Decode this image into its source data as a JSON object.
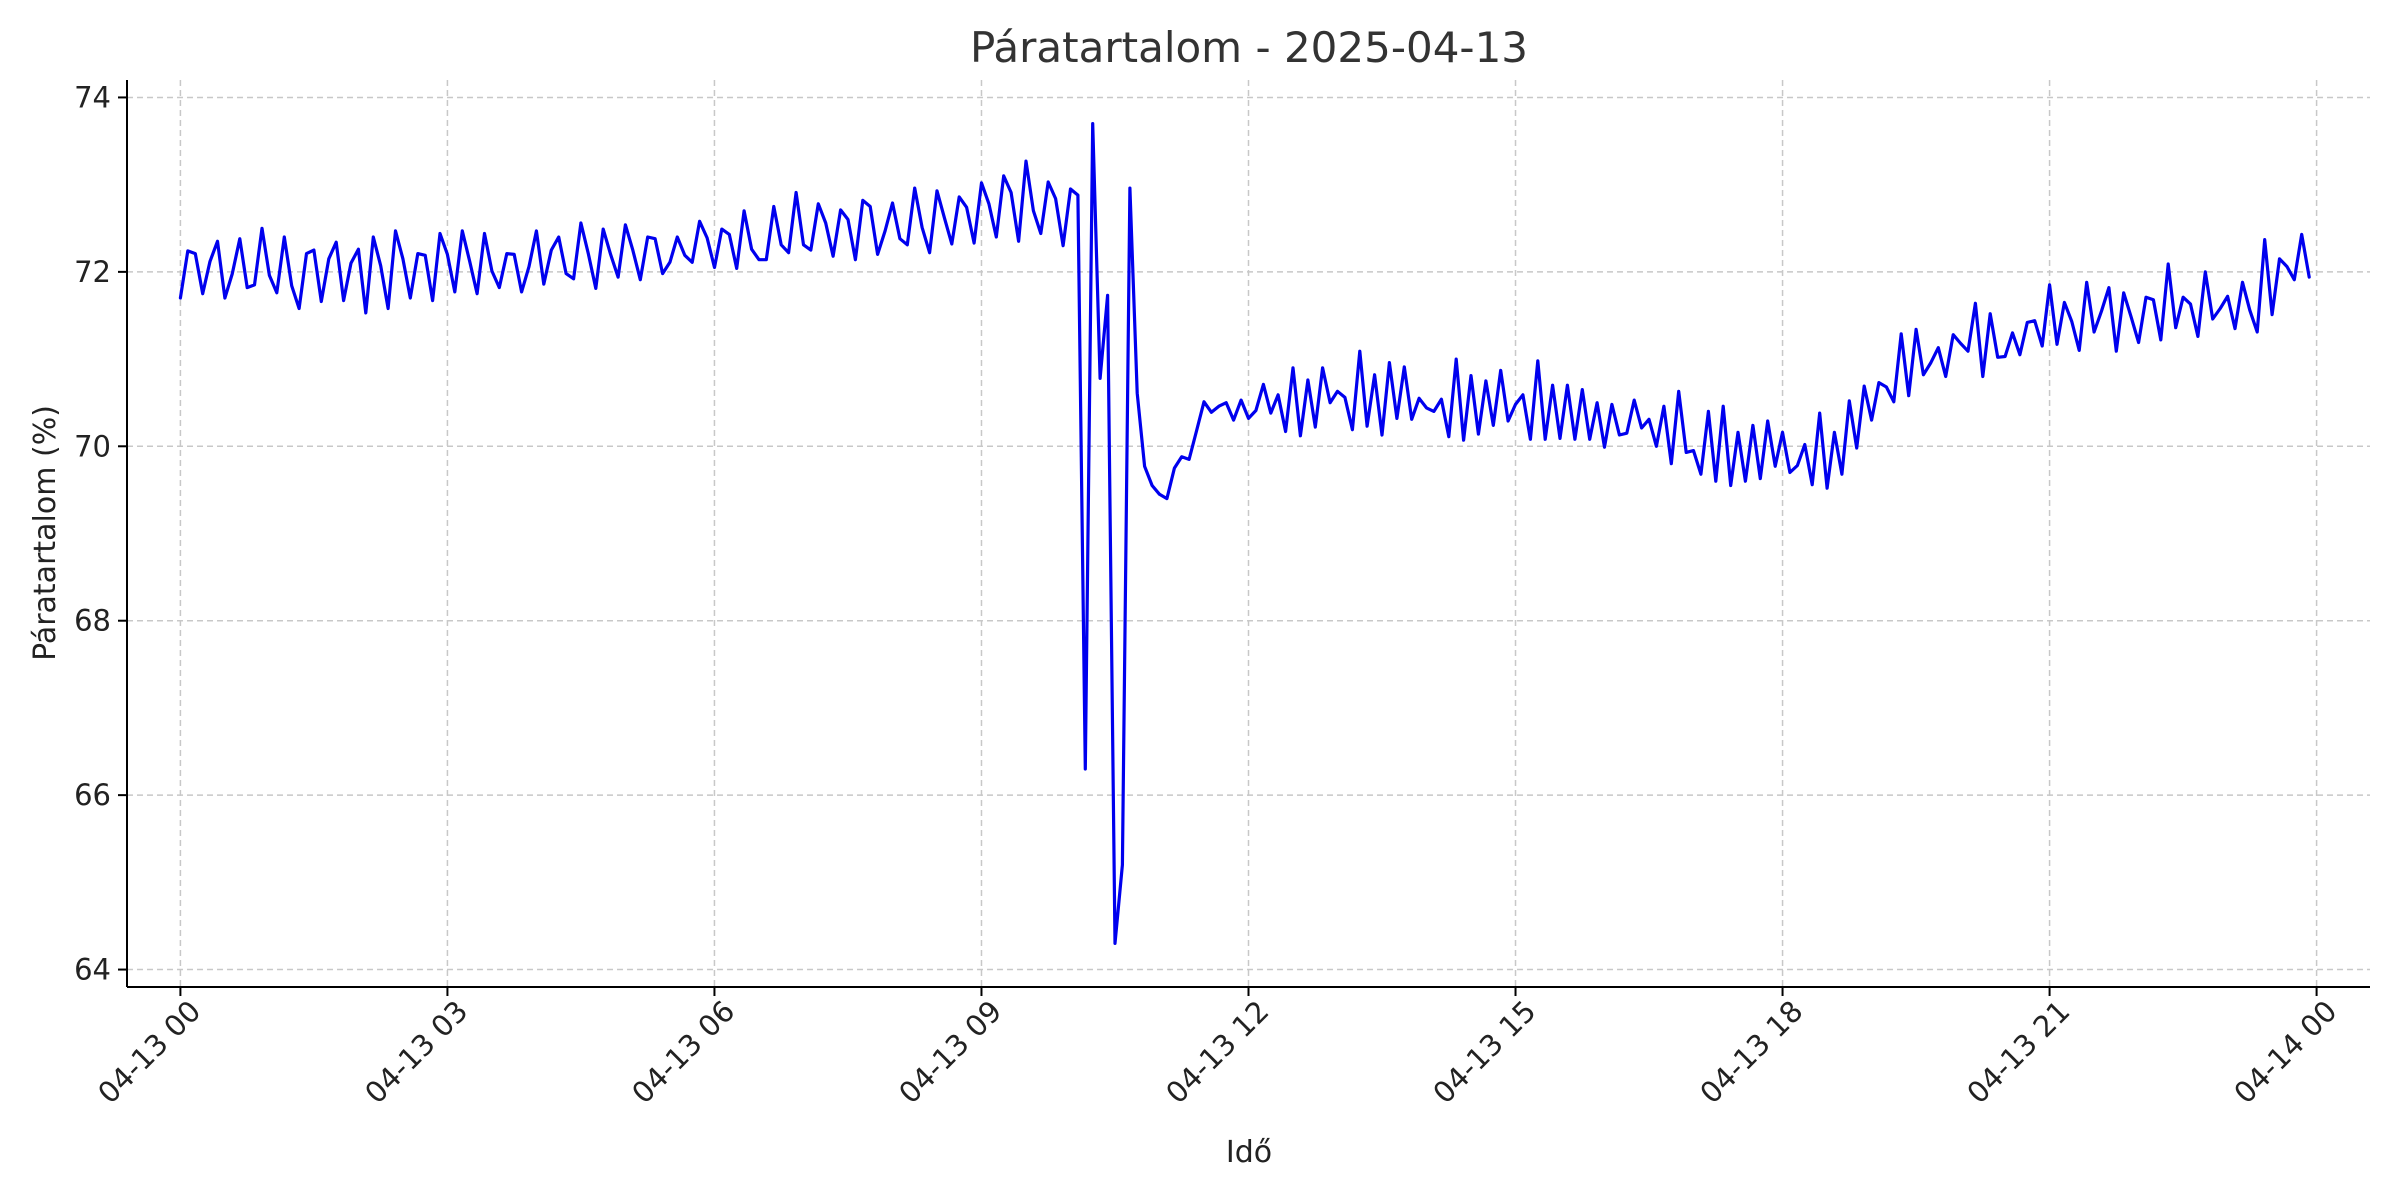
{
  "chart_data": {
    "type": "line",
    "title": "Páratartalom - 2025-04-13",
    "xlabel": "Idő",
    "ylabel": "Páratartalom (%)",
    "xlim_hours": [
      -0.6,
      24.6
    ],
    "ylim": [
      63.8,
      74.2
    ],
    "grid": true,
    "grid_style": "dashed",
    "line_color": "#0000ee",
    "grid_color": "#c8c8c8",
    "x_ticks": [
      {
        "hour": 0,
        "label": "04-13 00"
      },
      {
        "hour": 3,
        "label": "04-13 03"
      },
      {
        "hour": 6,
        "label": "04-13 06"
      },
      {
        "hour": 9,
        "label": "04-13 09"
      },
      {
        "hour": 12,
        "label": "04-13 12"
      },
      {
        "hour": 15,
        "label": "04-13 15"
      },
      {
        "hour": 18,
        "label": "04-13 18"
      },
      {
        "hour": 21,
        "label": "04-13 21"
      },
      {
        "hour": 24,
        "label": "04-14 00"
      }
    ],
    "y_ticks": [
      64,
      66,
      68,
      70,
      72,
      74
    ],
    "series": [
      {
        "x_hours": [
          0.0,
          0.083,
          0.167,
          0.25,
          0.333,
          0.417,
          0.5,
          0.583,
          0.667,
          0.75,
          0.833,
          0.917,
          1.0,
          1.083,
          1.167,
          1.25,
          1.333,
          1.417,
          1.5,
          1.583,
          1.667,
          1.75,
          1.833,
          1.917,
          2.0,
          2.083,
          2.167,
          2.25,
          2.333,
          2.417,
          2.5,
          2.583,
          2.667,
          2.75,
          2.833,
          2.917,
          3.0,
          3.083,
          3.167,
          3.25,
          3.333,
          3.417,
          3.5,
          3.583,
          3.667,
          3.75,
          3.833,
          3.917,
          4.0,
          4.083,
          4.167,
          4.25,
          4.333,
          4.417,
          4.5,
          4.583,
          4.667,
          4.75,
          4.833,
          4.917,
          5.0,
          5.083,
          5.167,
          5.25,
          5.333,
          5.417,
          5.5,
          5.583,
          5.667,
          5.75,
          5.833,
          5.917,
          6.0,
          6.083,
          6.167,
          6.25,
          6.333,
          6.417,
          6.5,
          6.583,
          6.667,
          6.75,
          6.833,
          6.917,
          7.0,
          7.083,
          7.167,
          7.25,
          7.333,
          7.417,
          7.5,
          7.583,
          7.667,
          7.75,
          7.833,
          7.917,
          8.0,
          8.083,
          8.167,
          8.25,
          8.333,
          8.417,
          8.5,
          8.583,
          8.667,
          8.75,
          8.833,
          8.917,
          9.0,
          9.083,
          9.167,
          9.25,
          9.333,
          9.417,
          9.5,
          9.583,
          9.667,
          9.75,
          9.833,
          9.917,
          10.0,
          10.083,
          10.167,
          10.25,
          10.333,
          10.417,
          10.5,
          10.583,
          10.667,
          10.75,
          10.833,
          10.917,
          11.0,
          11.083,
          11.167,
          11.25,
          11.333,
          11.417,
          11.5,
          11.583,
          11.667,
          11.75,
          11.833,
          11.917,
          12.0,
          12.083,
          12.167,
          12.25,
          12.333,
          12.417,
          12.5,
          12.583,
          12.667,
          12.75,
          12.833,
          12.917,
          13.0,
          13.083,
          13.167,
          13.25,
          13.333,
          13.417,
          13.5,
          13.583,
          13.667,
          13.75,
          13.833,
          13.917,
          14.0,
          14.083,
          14.167,
          14.25,
          14.333,
          14.417,
          14.5,
          14.583,
          14.667,
          14.75,
          14.833,
          14.917,
          15.0,
          15.083,
          15.167,
          15.25,
          15.333,
          15.417,
          15.5,
          15.583,
          15.667,
          15.75,
          15.833,
          15.917,
          16.0,
          16.083,
          16.167,
          16.25,
          16.333,
          16.417,
          16.5,
          16.583,
          16.667,
          16.75,
          16.833,
          16.917,
          17.0,
          17.083,
          17.167,
          17.25,
          17.333,
          17.417,
          17.5,
          17.583,
          17.667,
          17.75,
          17.833,
          17.917,
          18.0,
          18.083,
          18.167,
          18.25,
          18.333,
          18.417,
          18.5,
          18.583,
          18.667,
          18.75,
          18.833,
          18.917,
          19.0,
          19.083,
          19.167,
          19.25,
          19.333,
          19.417,
          19.5,
          19.583,
          19.667,
          19.75,
          19.833,
          19.917,
          20.0,
          20.083,
          20.167,
          20.25,
          20.333,
          20.417,
          20.5,
          20.583,
          20.667,
          20.75,
          20.833,
          20.917,
          21.0,
          21.083,
          21.167,
          21.25,
          21.333,
          21.417,
          21.5,
          21.583,
          21.667,
          21.75,
          21.833,
          21.917,
          22.0,
          22.083,
          22.167,
          22.25,
          22.333,
          22.417,
          22.5,
          22.583,
          22.667,
          22.75,
          22.833,
          22.917,
          23.0,
          23.083,
          23.167,
          23.25,
          23.333,
          23.417,
          23.5,
          23.583,
          23.667,
          23.75,
          23.833,
          23.917
        ],
        "values": [
          71.7,
          72.24,
          72.21,
          71.75,
          72.12,
          72.35,
          71.7,
          71.98,
          72.38,
          71.82,
          71.85,
          72.5,
          71.96,
          71.76,
          72.4,
          71.84,
          71.58,
          72.21,
          72.25,
          71.66,
          72.15,
          72.34,
          71.67,
          72.1,
          72.26,
          71.53,
          72.4,
          72.07,
          71.58,
          72.47,
          72.15,
          71.7,
          72.21,
          72.19,
          71.67,
          72.44,
          72.2,
          71.77,
          72.47,
          72.12,
          71.75,
          72.44,
          72.01,
          71.82,
          72.21,
          72.2,
          71.77,
          72.06,
          72.47,
          71.86,
          72.25,
          72.4,
          71.98,
          71.92,
          72.56,
          72.21,
          71.81,
          72.49,
          72.2,
          71.94,
          72.54,
          72.25,
          71.91,
          72.4,
          72.38,
          71.98,
          72.11,
          72.4,
          72.19,
          72.11,
          72.58,
          72.39,
          72.05,
          72.49,
          72.43,
          72.04,
          72.7,
          72.26,
          72.14,
          72.14,
          72.75,
          72.31,
          72.22,
          72.91,
          72.31,
          72.25,
          72.78,
          72.56,
          72.18,
          72.71,
          72.6,
          72.14,
          72.82,
          72.75,
          72.2,
          72.47,
          72.79,
          72.38,
          72.31,
          72.96,
          72.51,
          72.22,
          72.93,
          72.62,
          72.32,
          72.86,
          72.74,
          72.33,
          73.02,
          72.78,
          72.4,
          73.1,
          72.91,
          72.35,
          73.27,
          72.7,
          72.44,
          73.03,
          72.84,
          72.3,
          72.95,
          72.88,
          66.3,
          73.7,
          70.78,
          71.73,
          64.3,
          65.2,
          72.96,
          70.61,
          69.77,
          69.55,
          69.45,
          69.4,
          69.75,
          69.88,
          69.85,
          70.18,
          70.51,
          70.39,
          70.46,
          70.5,
          70.3,
          70.53,
          70.32,
          70.41,
          70.71,
          70.38,
          70.59,
          70.17,
          70.9,
          70.12,
          70.76,
          70.22,
          70.9,
          70.5,
          70.63,
          70.56,
          70.19,
          71.09,
          70.23,
          70.82,
          70.13,
          70.96,
          70.32,
          70.91,
          70.31,
          70.55,
          70.44,
          70.4,
          70.54,
          70.11,
          71.0,
          70.07,
          70.81,
          70.14,
          70.75,
          70.24,
          70.87,
          70.29,
          70.48,
          70.59,
          70.08,
          70.98,
          70.08,
          70.7,
          70.09,
          70.7,
          70.08,
          70.65,
          70.08,
          70.5,
          69.99,
          70.48,
          70.13,
          70.15,
          70.53,
          70.21,
          70.31,
          70.0,
          70.46,
          69.8,
          70.63,
          69.93,
          69.95,
          69.68,
          70.4,
          69.6,
          70.46,
          69.55,
          70.16,
          69.6,
          70.24,
          69.63,
          70.29,
          69.77,
          70.16,
          69.7,
          69.78,
          70.02,
          69.56,
          70.38,
          69.52,
          70.16,
          69.68,
          70.52,
          69.98,
          70.69,
          70.3,
          70.73,
          70.68,
          70.51,
          71.29,
          70.58,
          71.34,
          70.82,
          70.96,
          71.13,
          70.8,
          71.28,
          71.18,
          71.09,
          71.64,
          70.8,
          71.52,
          71.02,
          71.03,
          71.3,
          71.05,
          71.42,
          71.44,
          71.15,
          71.85,
          71.17,
          71.65,
          71.43,
          71.1,
          71.88,
          71.31,
          71.55,
          71.82,
          71.09,
          71.76,
          71.48,
          71.19,
          71.71,
          71.68,
          71.22,
          72.09,
          71.36,
          71.71,
          71.63,
          71.26,
          72.0,
          71.46,
          71.58,
          71.72,
          71.35,
          71.88,
          71.56,
          71.31,
          72.37,
          71.51,
          72.15,
          72.06,
          71.91,
          72.43,
          71.94
        ]
      }
    ]
  }
}
